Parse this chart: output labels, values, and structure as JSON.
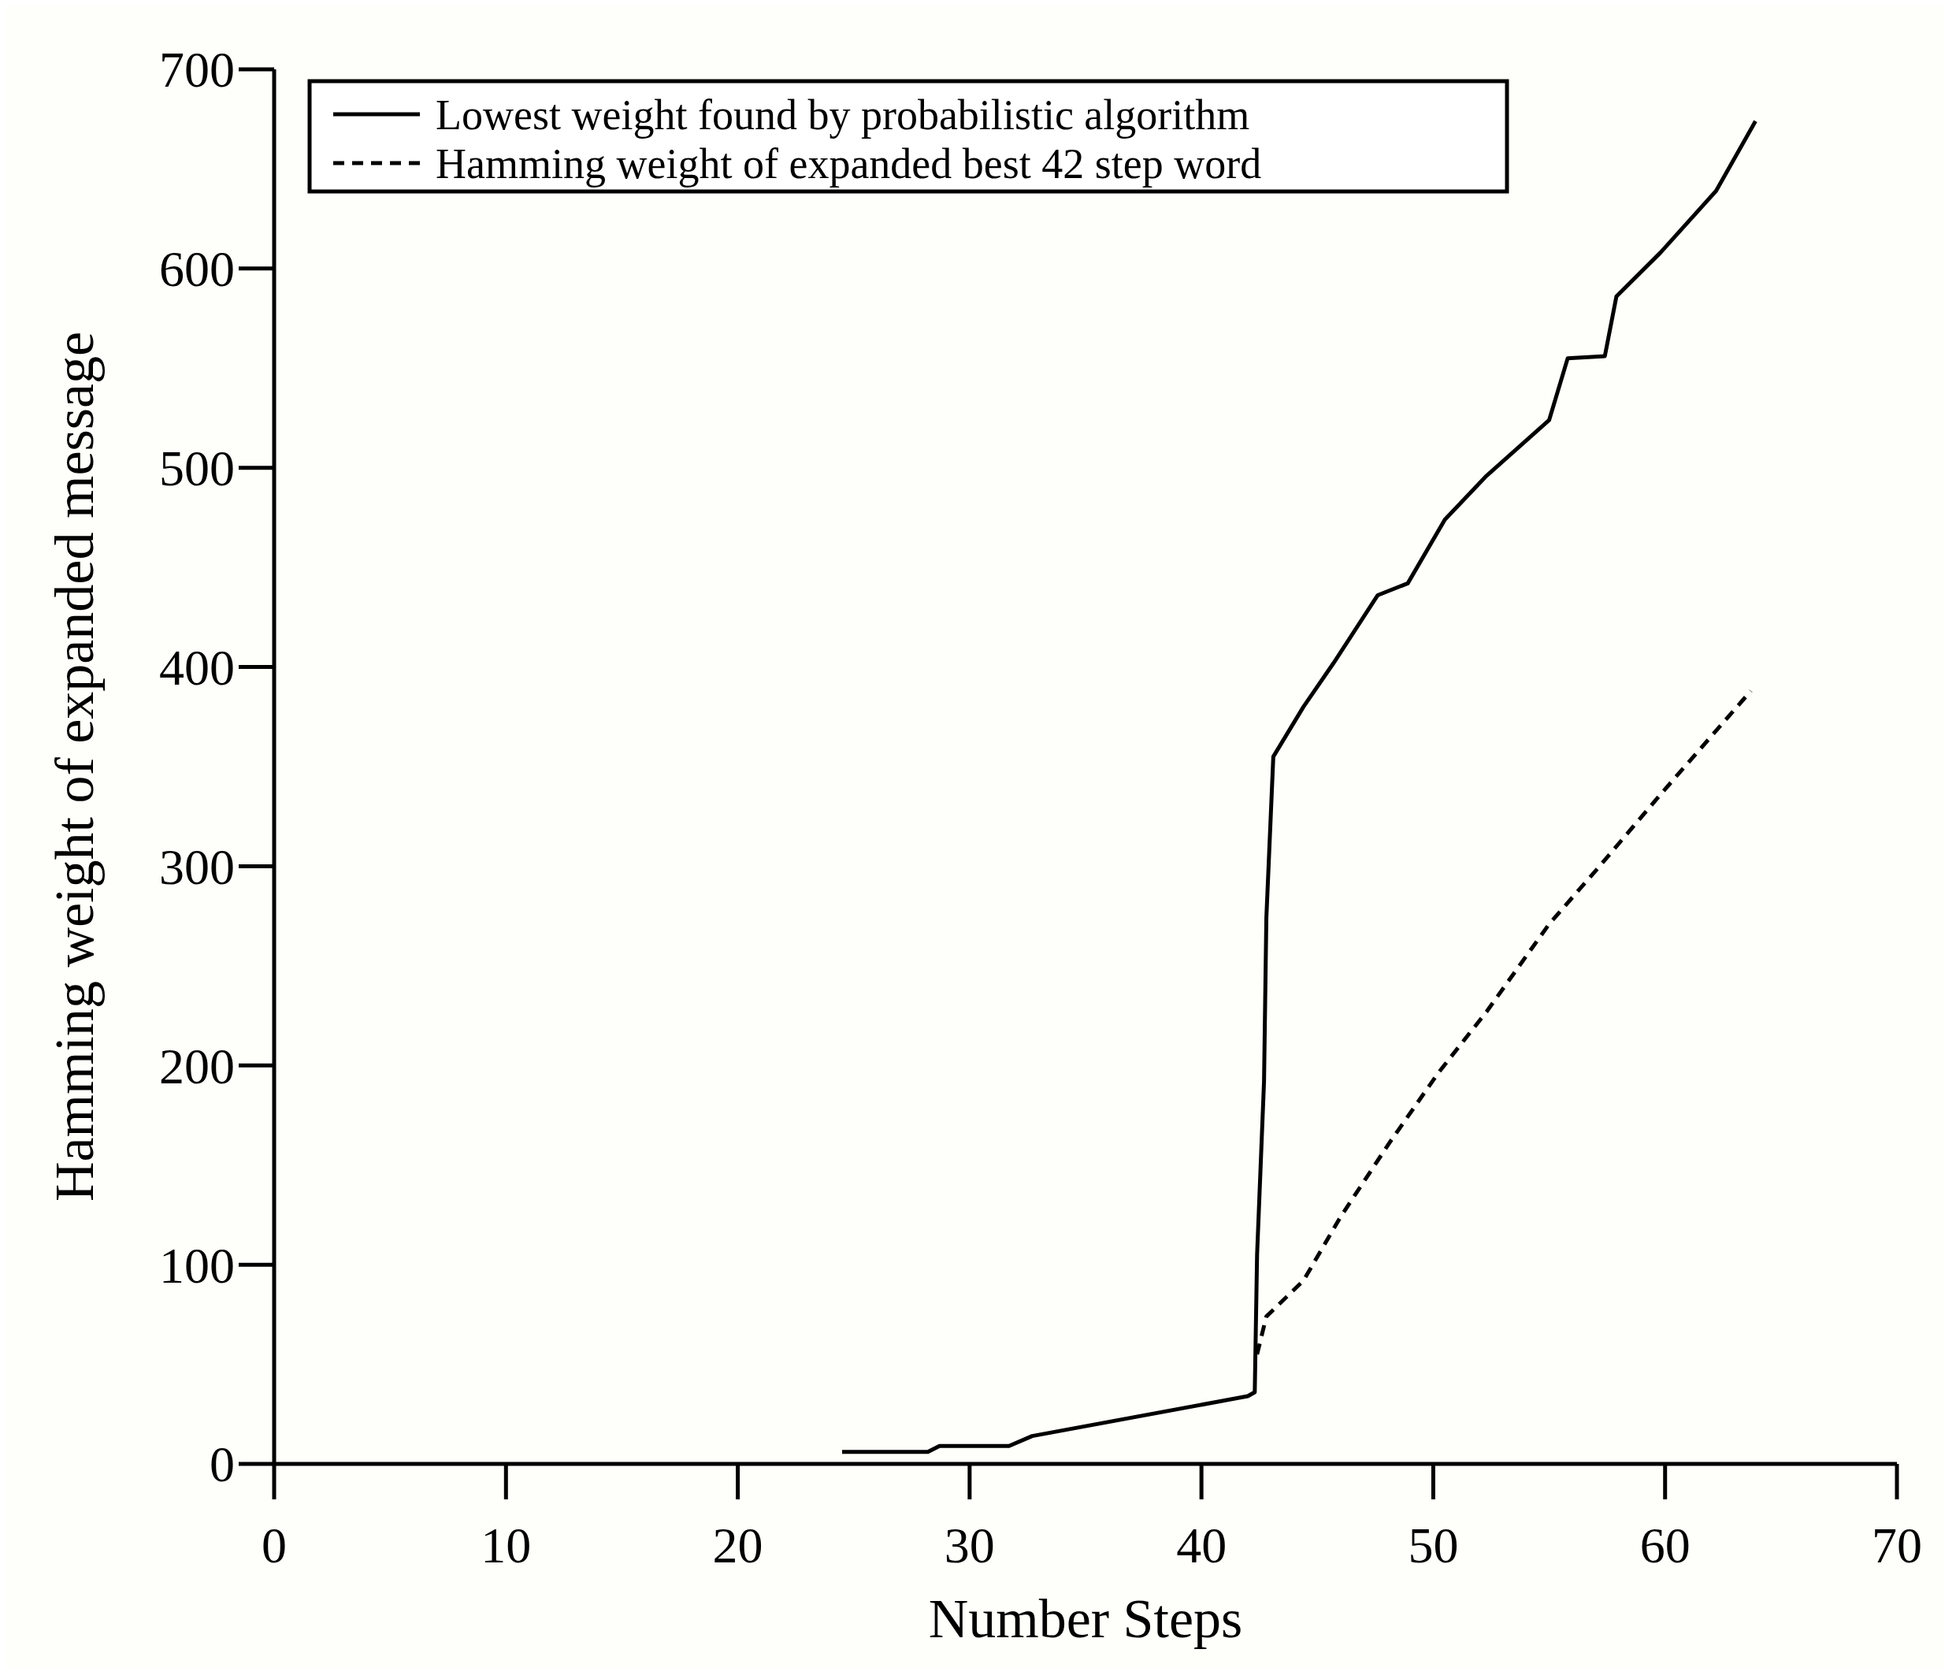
{
  "chart_data": {
    "type": "line",
    "xlabel": "Number Steps",
    "ylabel": "Hamming weight of expanded message",
    "xlim": [
      0,
      70
    ],
    "xticks": [
      0,
      10,
      20,
      30,
      40,
      50,
      60,
      70
    ],
    "ylim": [
      0,
      700
    ],
    "yticks": [
      0,
      100,
      200,
      300,
      400,
      500,
      600,
      700
    ],
    "grid": false,
    "legend": "top left",
    "series": [
      {
        "name": "Lowest weight found by probabilistic algorithm",
        "color": "#000000",
        "line_style": "solid",
        "x": [
          24.5,
          28.2,
          28.7,
          31.7,
          32.7,
          42,
          42.3,
          42.4,
          42.7,
          42.8,
          43.1,
          44.4,
          45.7,
          47.6,
          48.9,
          50.5,
          52.3,
          55,
          55.8,
          57.4,
          57.9,
          59.8,
          62.2,
          63.9
        ],
        "values": [
          6,
          6,
          9,
          9,
          14,
          34,
          36,
          105,
          192,
          274,
          355,
          380,
          402,
          436,
          442,
          474,
          496,
          524,
          555,
          556,
          586,
          608,
          639,
          674
        ]
      },
      {
        "name": "Hamming weight of expanded best 42 step word",
        "color": "#000000",
        "line_style": "dashed",
        "x": [
          42.4,
          42.8,
          44.4,
          46,
          48.1,
          50.2,
          52.3,
          55,
          57.1,
          59.8,
          63.7
        ],
        "values": [
          55,
          74,
          92,
          124,
          161,
          196,
          227,
          271,
          299,
          336,
          388
        ]
      }
    ]
  }
}
